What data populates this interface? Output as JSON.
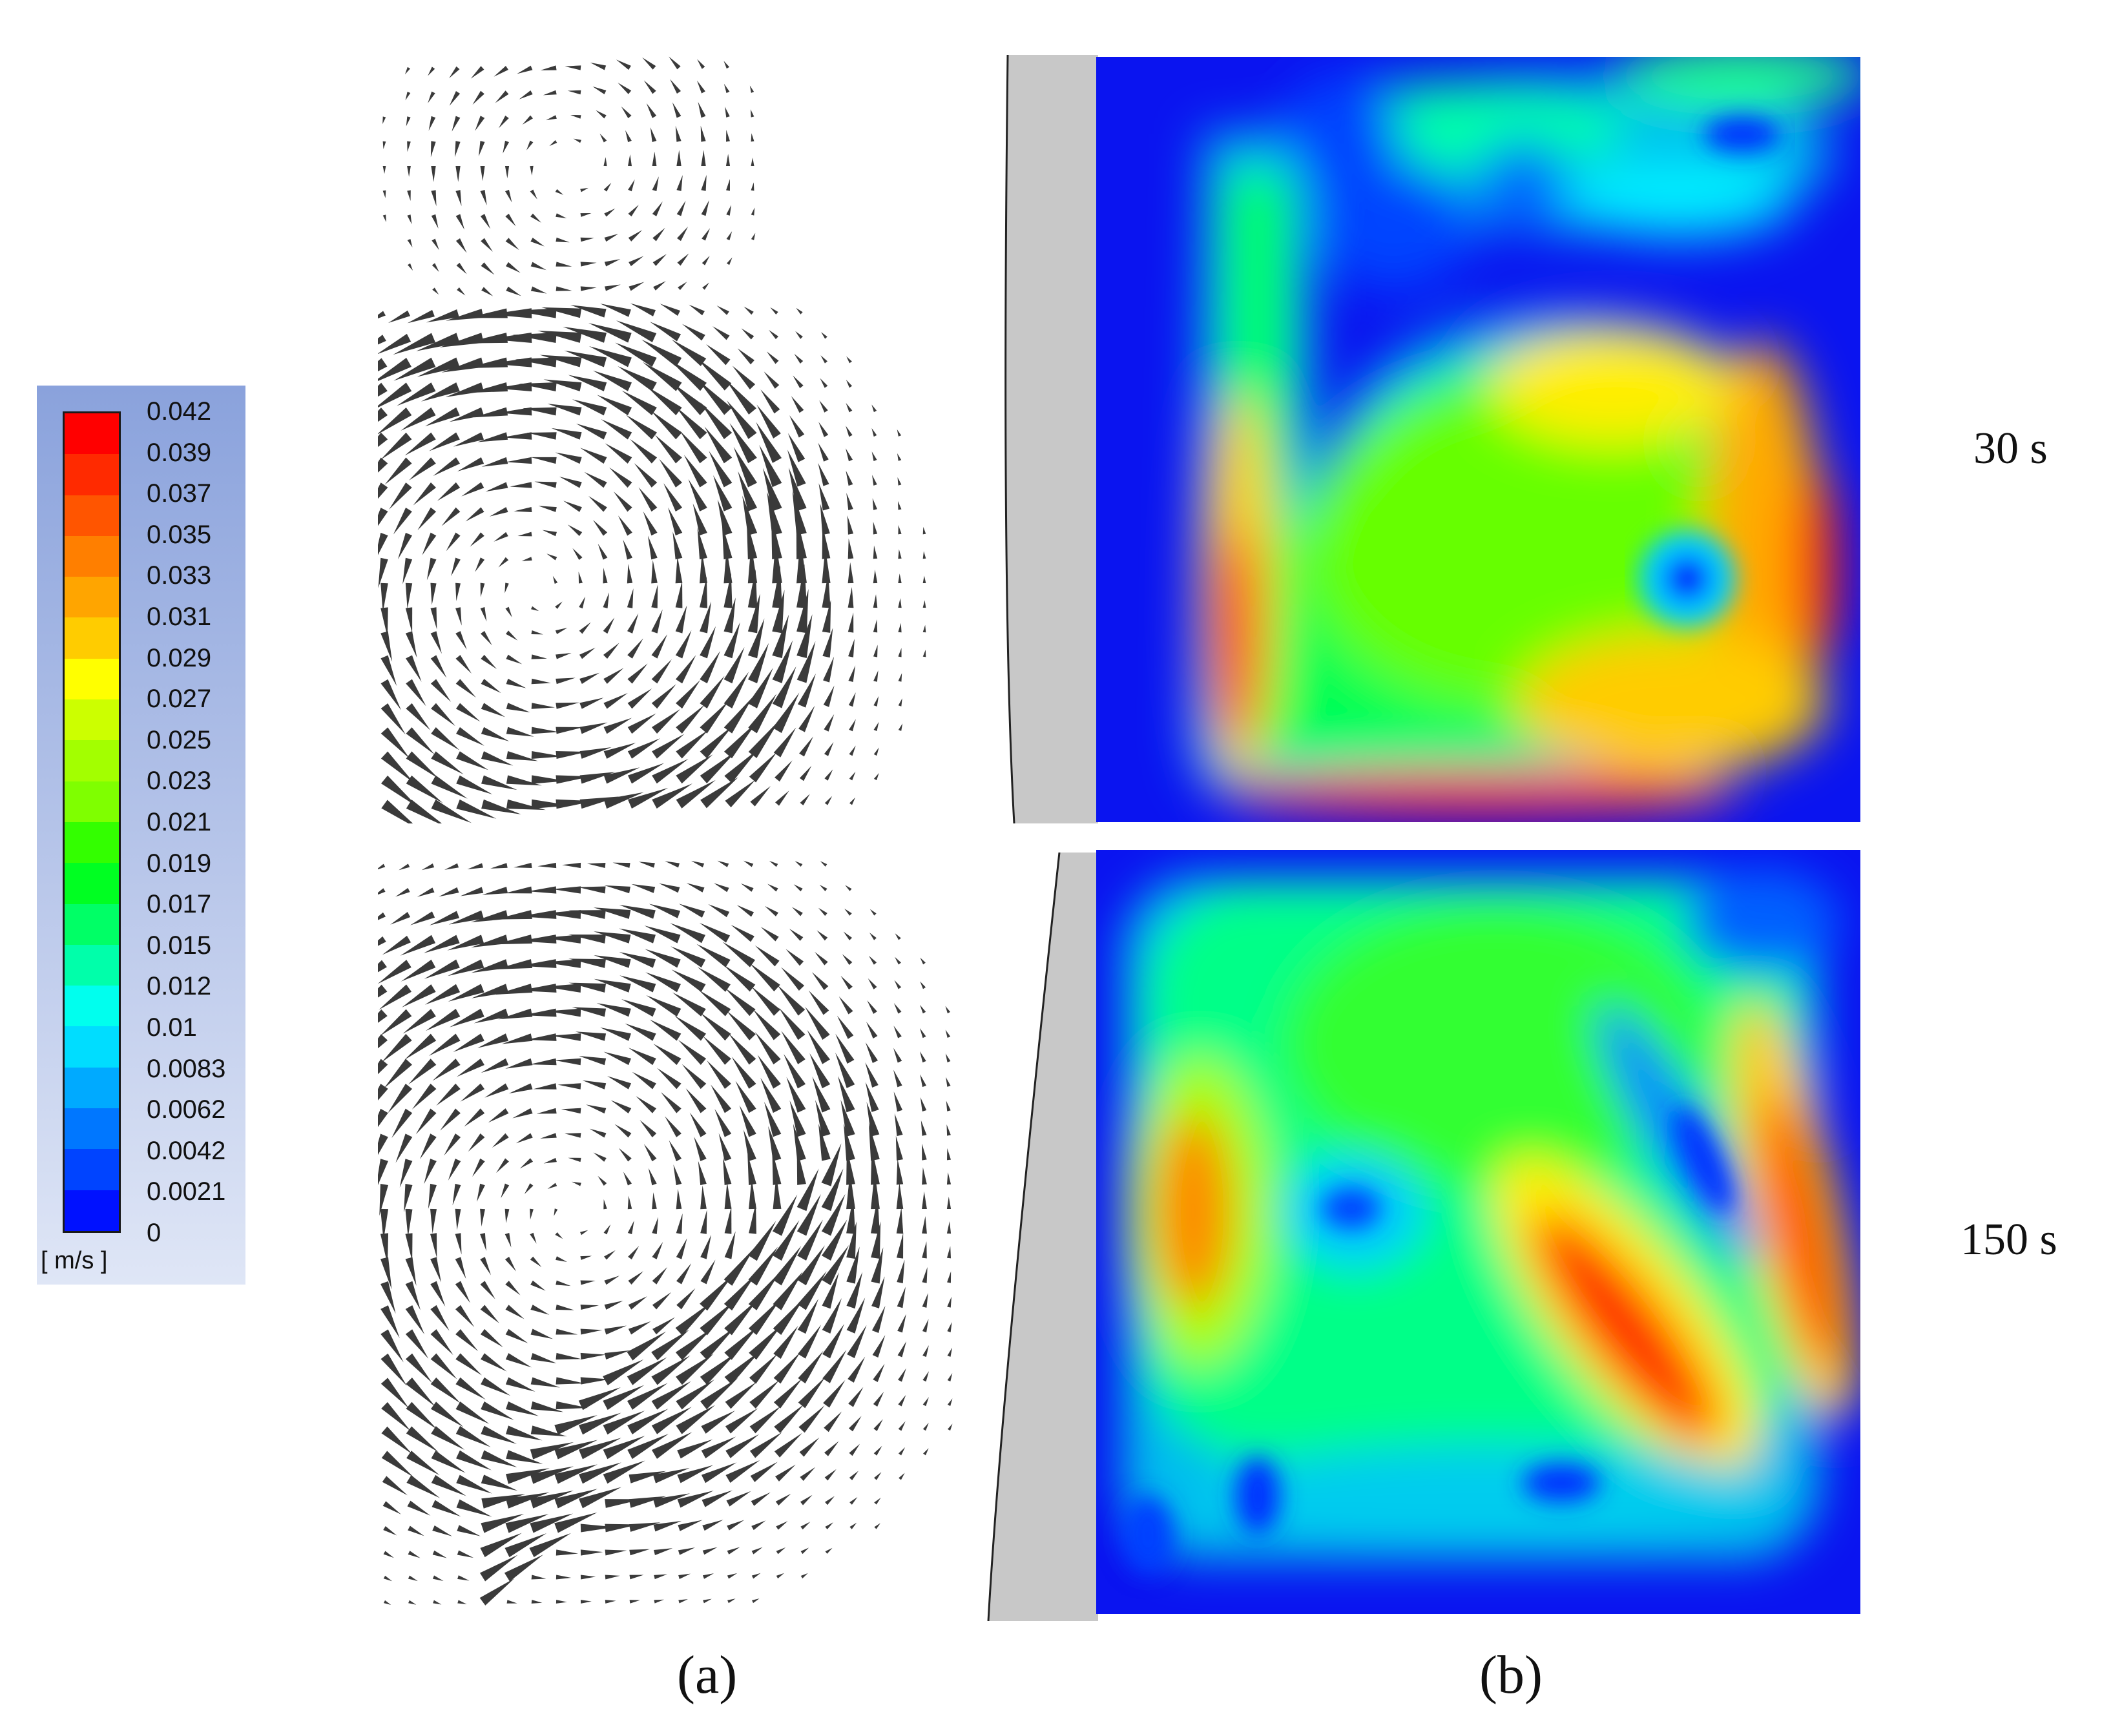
{
  "legend": {
    "ticks": [
      "0.042",
      "0.039",
      "0.037",
      "0.035",
      "0.033",
      "0.031",
      "0.029",
      "0.027",
      "0.025",
      "0.023",
      "0.021",
      "0.019",
      "0.017",
      "0.015",
      "0.012",
      "0.01",
      "0.0083",
      "0.0062",
      "0.0042",
      "0.0021",
      "0"
    ],
    "unit": "[ m/s ]",
    "colors": [
      "#ff0000",
      "#ff2a00",
      "#ff5500",
      "#ff7f00",
      "#ffa500",
      "#ffcc00",
      "#ffff00",
      "#ccff00",
      "#a3ff00",
      "#7fff00",
      "#33ff00",
      "#00ff22",
      "#00ff66",
      "#00ffaa",
      "#00ffee",
      "#00ddff",
      "#00aaff",
      "#0077ff",
      "#0044ff",
      "#0011ff"
    ]
  },
  "rows": [
    {
      "time": "30 s"
    },
    {
      "time": "150 s"
    }
  ],
  "columns": {
    "a": "(a)",
    "b": "(b)"
  },
  "colors": {
    "background_field": "#0a14f0",
    "wall": "#c8c8c8",
    "arrow": "#3a3a3a"
  }
}
